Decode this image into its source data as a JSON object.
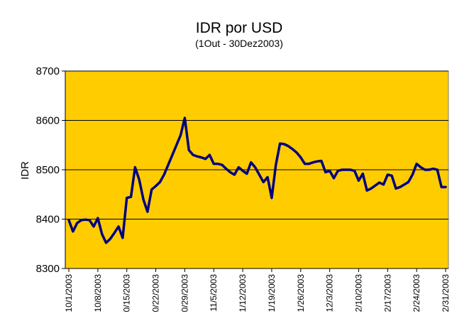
{
  "chart_data": {
    "type": "line",
    "title": "IDR por USD",
    "subtitle": "(1Out - 30Dez2003)",
    "y_label": "IDR",
    "categories": [
      "10/1/2003",
      null,
      null,
      null,
      null,
      null,
      null,
      "10/8/2003",
      null,
      null,
      null,
      null,
      null,
      null,
      "0/15/2003",
      null,
      null,
      null,
      null,
      null,
      null,
      "0/22/2003",
      null,
      null,
      null,
      null,
      null,
      null,
      "0/29/2003",
      null,
      null,
      null,
      null,
      null,
      null,
      "11/5/2003",
      null,
      null,
      null,
      null,
      null,
      null,
      "1/12/2003",
      null,
      null,
      null,
      null,
      null,
      null,
      "1/19/2003",
      null,
      null,
      null,
      null,
      null,
      null,
      "1/26/2003",
      null,
      null,
      null,
      null,
      null,
      null,
      "12/3/2003",
      null,
      null,
      null,
      null,
      null,
      null,
      "2/10/2003",
      null,
      null,
      null,
      null,
      null,
      null,
      "2/17/2003",
      null,
      null,
      null,
      null,
      null,
      null,
      "2/24/2003",
      null,
      null,
      null,
      null,
      null,
      null,
      "2/31/2003"
    ],
    "series": [
      {
        "name": "IDR",
        "color": "#000080",
        "values": [
          8398,
          8375,
          8392,
          8398,
          8399,
          8398,
          8385,
          8402,
          8370,
          8352,
          8360,
          8372,
          8385,
          8362,
          8443,
          8445,
          8505,
          8480,
          8440,
          8415,
          8460,
          8467,
          8475,
          8490,
          8510,
          8530,
          8550,
          8570,
          8605,
          8540,
          8530,
          8527,
          8525,
          8522,
          8530,
          8512,
          8512,
          8510,
          8502,
          8495,
          8490,
          8505,
          8498,
          8492,
          8515,
          8505,
          8490,
          8475,
          8485,
          8443,
          8510,
          8553,
          8552,
          8548,
          8542,
          8535,
          8525,
          8512,
          8512,
          8515,
          8517,
          8518,
          8495,
          8498,
          8483,
          8498,
          8500,
          8500,
          8500,
          8498,
          8478,
          8492,
          8458,
          8462,
          8468,
          8474,
          8470,
          8490,
          8488,
          8462,
          8465,
          8470,
          8475,
          8490,
          8512,
          8505,
          8500,
          8500,
          8502,
          8500,
          8465,
          8465
        ]
      }
    ],
    "ylim": [
      8300,
      8700
    ],
    "yticks": [
      8300,
      8400,
      8500,
      8600,
      8700
    ],
    "grid": true,
    "background": "#FFCC00"
  }
}
